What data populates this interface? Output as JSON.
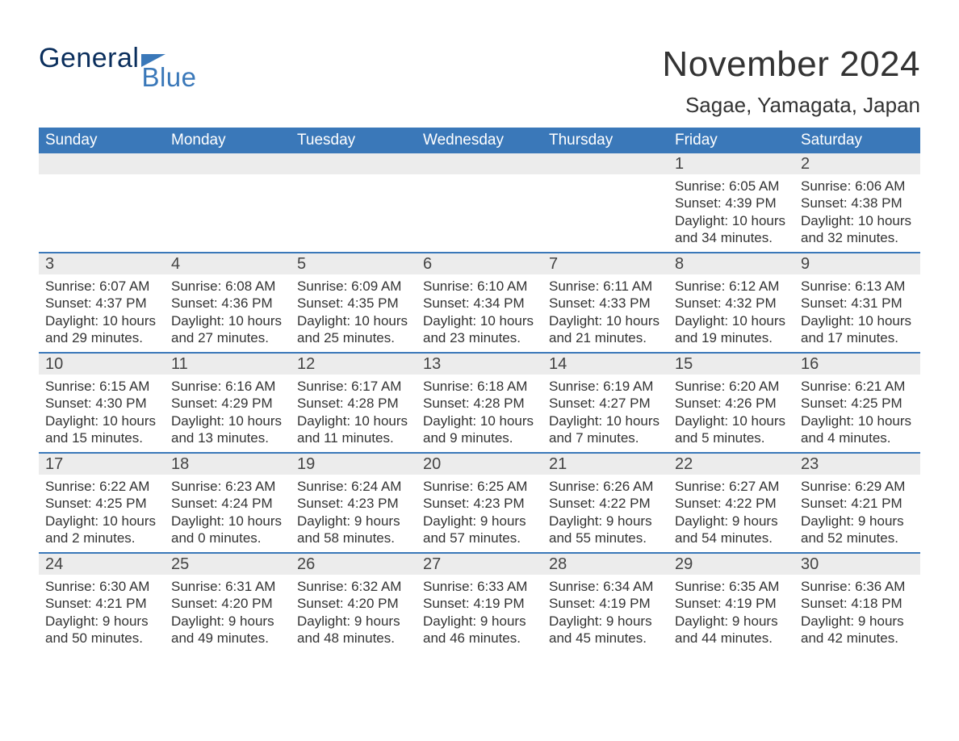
{
  "logo": {
    "text1": "General",
    "text2": "Blue"
  },
  "title": "November 2024",
  "location": "Sagae, Yamagata, Japan",
  "colors": {
    "header_bg": "#3a78b9",
    "header_text": "#ffffff",
    "stripe_bg": "#ececec",
    "rule": "#3a78b9",
    "body_text": "#333333"
  },
  "fonts": {
    "title_size": 44,
    "location_size": 26,
    "dayhead_size": 19,
    "daynum_size": 20,
    "body_size": 17
  },
  "day_headers": [
    "Sunday",
    "Monday",
    "Tuesday",
    "Wednesday",
    "Thursday",
    "Friday",
    "Saturday"
  ],
  "weeks": [
    [
      {
        "day": "",
        "lines": []
      },
      {
        "day": "",
        "lines": []
      },
      {
        "day": "",
        "lines": []
      },
      {
        "day": "",
        "lines": []
      },
      {
        "day": "",
        "lines": []
      },
      {
        "day": "1",
        "lines": [
          "Sunrise: 6:05 AM",
          "Sunset: 4:39 PM",
          "Daylight: 10 hours",
          "and 34 minutes."
        ]
      },
      {
        "day": "2",
        "lines": [
          "Sunrise: 6:06 AM",
          "Sunset: 4:38 PM",
          "Daylight: 10 hours",
          "and 32 minutes."
        ]
      }
    ],
    [
      {
        "day": "3",
        "lines": [
          "Sunrise: 6:07 AM",
          "Sunset: 4:37 PM",
          "Daylight: 10 hours",
          "and 29 minutes."
        ]
      },
      {
        "day": "4",
        "lines": [
          "Sunrise: 6:08 AM",
          "Sunset: 4:36 PM",
          "Daylight: 10 hours",
          "and 27 minutes."
        ]
      },
      {
        "day": "5",
        "lines": [
          "Sunrise: 6:09 AM",
          "Sunset: 4:35 PM",
          "Daylight: 10 hours",
          "and 25 minutes."
        ]
      },
      {
        "day": "6",
        "lines": [
          "Sunrise: 6:10 AM",
          "Sunset: 4:34 PM",
          "Daylight: 10 hours",
          "and 23 minutes."
        ]
      },
      {
        "day": "7",
        "lines": [
          "Sunrise: 6:11 AM",
          "Sunset: 4:33 PM",
          "Daylight: 10 hours",
          "and 21 minutes."
        ]
      },
      {
        "day": "8",
        "lines": [
          "Sunrise: 6:12 AM",
          "Sunset: 4:32 PM",
          "Daylight: 10 hours",
          "and 19 minutes."
        ]
      },
      {
        "day": "9",
        "lines": [
          "Sunrise: 6:13 AM",
          "Sunset: 4:31 PM",
          "Daylight: 10 hours",
          "and 17 minutes."
        ]
      }
    ],
    [
      {
        "day": "10",
        "lines": [
          "Sunrise: 6:15 AM",
          "Sunset: 4:30 PM",
          "Daylight: 10 hours",
          "and 15 minutes."
        ]
      },
      {
        "day": "11",
        "lines": [
          "Sunrise: 6:16 AM",
          "Sunset: 4:29 PM",
          "Daylight: 10 hours",
          "and 13 minutes."
        ]
      },
      {
        "day": "12",
        "lines": [
          "Sunrise: 6:17 AM",
          "Sunset: 4:28 PM",
          "Daylight: 10 hours",
          "and 11 minutes."
        ]
      },
      {
        "day": "13",
        "lines": [
          "Sunrise: 6:18 AM",
          "Sunset: 4:28 PM",
          "Daylight: 10 hours",
          "and 9 minutes."
        ]
      },
      {
        "day": "14",
        "lines": [
          "Sunrise: 6:19 AM",
          "Sunset: 4:27 PM",
          "Daylight: 10 hours",
          "and 7 minutes."
        ]
      },
      {
        "day": "15",
        "lines": [
          "Sunrise: 6:20 AM",
          "Sunset: 4:26 PM",
          "Daylight: 10 hours",
          "and 5 minutes."
        ]
      },
      {
        "day": "16",
        "lines": [
          "Sunrise: 6:21 AM",
          "Sunset: 4:25 PM",
          "Daylight: 10 hours",
          "and 4 minutes."
        ]
      }
    ],
    [
      {
        "day": "17",
        "lines": [
          "Sunrise: 6:22 AM",
          "Sunset: 4:25 PM",
          "Daylight: 10 hours",
          "and 2 minutes."
        ]
      },
      {
        "day": "18",
        "lines": [
          "Sunrise: 6:23 AM",
          "Sunset: 4:24 PM",
          "Daylight: 10 hours",
          "and 0 minutes."
        ]
      },
      {
        "day": "19",
        "lines": [
          "Sunrise: 6:24 AM",
          "Sunset: 4:23 PM",
          "Daylight: 9 hours",
          "and 58 minutes."
        ]
      },
      {
        "day": "20",
        "lines": [
          "Sunrise: 6:25 AM",
          "Sunset: 4:23 PM",
          "Daylight: 9 hours",
          "and 57 minutes."
        ]
      },
      {
        "day": "21",
        "lines": [
          "Sunrise: 6:26 AM",
          "Sunset: 4:22 PM",
          "Daylight: 9 hours",
          "and 55 minutes."
        ]
      },
      {
        "day": "22",
        "lines": [
          "Sunrise: 6:27 AM",
          "Sunset: 4:22 PM",
          "Daylight: 9 hours",
          "and 54 minutes."
        ]
      },
      {
        "day": "23",
        "lines": [
          "Sunrise: 6:29 AM",
          "Sunset: 4:21 PM",
          "Daylight: 9 hours",
          "and 52 minutes."
        ]
      }
    ],
    [
      {
        "day": "24",
        "lines": [
          "Sunrise: 6:30 AM",
          "Sunset: 4:21 PM",
          "Daylight: 9 hours",
          "and 50 minutes."
        ]
      },
      {
        "day": "25",
        "lines": [
          "Sunrise: 6:31 AM",
          "Sunset: 4:20 PM",
          "Daylight: 9 hours",
          "and 49 minutes."
        ]
      },
      {
        "day": "26",
        "lines": [
          "Sunrise: 6:32 AM",
          "Sunset: 4:20 PM",
          "Daylight: 9 hours",
          "and 48 minutes."
        ]
      },
      {
        "day": "27",
        "lines": [
          "Sunrise: 6:33 AM",
          "Sunset: 4:19 PM",
          "Daylight: 9 hours",
          "and 46 minutes."
        ]
      },
      {
        "day": "28",
        "lines": [
          "Sunrise: 6:34 AM",
          "Sunset: 4:19 PM",
          "Daylight: 9 hours",
          "and 45 minutes."
        ]
      },
      {
        "day": "29",
        "lines": [
          "Sunrise: 6:35 AM",
          "Sunset: 4:19 PM",
          "Daylight: 9 hours",
          "and 44 minutes."
        ]
      },
      {
        "day": "30",
        "lines": [
          "Sunrise: 6:36 AM",
          "Sunset: 4:18 PM",
          "Daylight: 9 hours",
          "and 42 minutes."
        ]
      }
    ]
  ]
}
